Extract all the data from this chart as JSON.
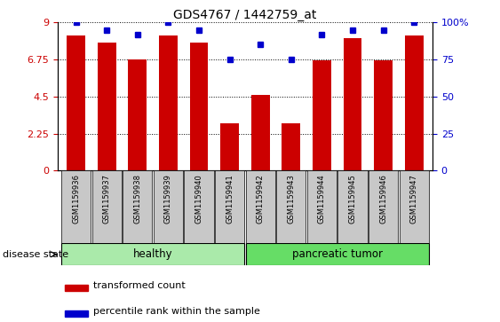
{
  "title": "GDS4767 / 1442759_at",
  "samples": [
    "GSM1159936",
    "GSM1159937",
    "GSM1159938",
    "GSM1159939",
    "GSM1159940",
    "GSM1159941",
    "GSM1159942",
    "GSM1159943",
    "GSM1159944",
    "GSM1159945",
    "GSM1159946",
    "GSM1159947"
  ],
  "bar_values": [
    8.2,
    7.8,
    6.75,
    8.2,
    7.8,
    2.9,
    4.6,
    2.9,
    6.7,
    8.05,
    6.7,
    8.2
  ],
  "percentile_values": [
    100,
    95,
    92,
    100,
    95,
    75,
    85,
    75,
    92,
    95,
    95,
    100
  ],
  "bar_color": "#cc0000",
  "percentile_color": "#0000cc",
  "ylim_left": [
    0,
    9
  ],
  "ylim_right": [
    0,
    100
  ],
  "yticks_left": [
    0,
    2.25,
    4.5,
    6.75,
    9
  ],
  "ytick_labels_left": [
    "0",
    "2.25",
    "4.5",
    "6.75",
    "9"
  ],
  "yticks_right": [
    0,
    25,
    50,
    75,
    100
  ],
  "ytick_labels_right": [
    "0",
    "25",
    "50",
    "75",
    "100%"
  ],
  "groups": [
    {
      "label": "healthy",
      "start": 0,
      "end": 5,
      "color": "#aaeaaa"
    },
    {
      "label": "pancreatic tumor",
      "start": 6,
      "end": 11,
      "color": "#66dd66"
    }
  ],
  "disease_state_label": "disease state",
  "legend_bar_label": "transformed count",
  "legend_dot_label": "percentile rank within the sample",
  "background_color": "#ffffff",
  "tick_bg_color": "#c8c8c8"
}
